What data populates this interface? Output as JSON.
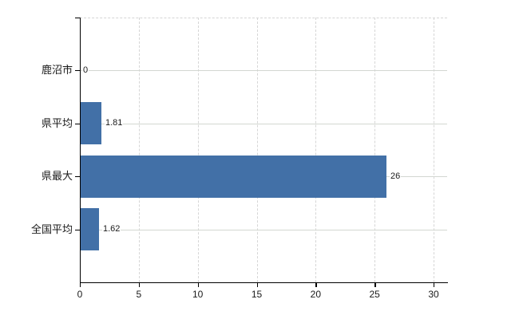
{
  "chart_data": {
    "type": "bar",
    "orientation": "horizontal",
    "title": "",
    "xlabel": "",
    "ylabel": "",
    "categories": [
      "鹿沼市",
      "県平均",
      "県最大",
      "全国平均"
    ],
    "values": [
      0,
      1.81,
      26,
      1.62
    ],
    "value_labels": [
      "0",
      "1.81",
      "26",
      "1.62"
    ],
    "xlim": [
      0,
      30
    ],
    "x_ticks": [
      0,
      5,
      10,
      15,
      20,
      25,
      30
    ],
    "x_tick_labels": [
      "0",
      "5",
      "10",
      "15",
      "20",
      "25",
      "30"
    ],
    "grid": true,
    "legend": false,
    "colors": {
      "bar": "#4270a7",
      "grid_vertical": "#d6d6d6",
      "grid_horizontal": "#d3d7d1",
      "axis": "#000000",
      "text": "#1a1a1a",
      "background": "#ffffff"
    }
  }
}
